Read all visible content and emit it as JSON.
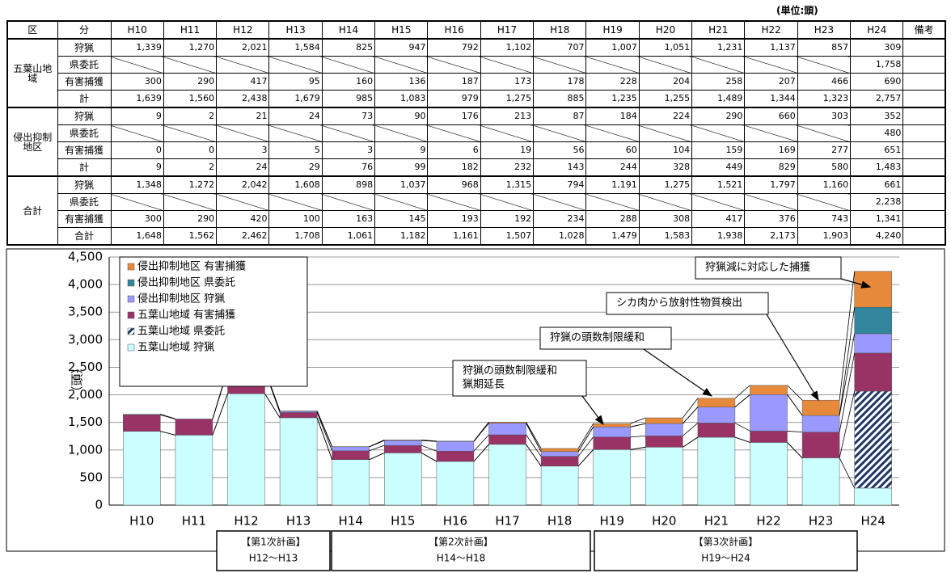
{
  "table": {
    "unit": "(単位:頭)",
    "header": [
      "区",
      "分",
      "H10",
      "H11",
      "H12",
      "H13",
      "H14",
      "H15",
      "H16",
      "H17",
      "H18",
      "H19",
      "H20",
      "H21",
      "H22",
      "H23",
      "H24",
      "備考"
    ],
    "groups": [
      {
        "name": "五葉山地域",
        "rows": [
          {
            "label": "狩猟",
            "cells": [
              "1,339",
              "1,270",
              "2,021",
              "1,584",
              "825",
              "947",
              "792",
              "1,102",
              "707",
              "1,007",
              "1,051",
              "1,231",
              "1,137",
              "857",
              "309"
            ]
          },
          {
            "label": "県委託",
            "cells": [
              null,
              null,
              null,
              null,
              null,
              null,
              null,
              null,
              null,
              null,
              null,
              null,
              null,
              null,
              "1,758"
            ]
          },
          {
            "label": "有害捕獲",
            "cells": [
              "300",
              "290",
              "417",
              "95",
              "160",
              "136",
              "187",
              "173",
              "178",
              "228",
              "204",
              "258",
              "207",
              "466",
              "690"
            ]
          },
          {
            "label": "計",
            "cells": [
              "1,639",
              "1,560",
              "2,438",
              "1,679",
              "985",
              "1,083",
              "979",
              "1,275",
              "885",
              "1,235",
              "1,255",
              "1,489",
              "1,344",
              "1,323",
              "2,757"
            ]
          }
        ]
      },
      {
        "name": "侵出抑制地区",
        "rows": [
          {
            "label": "狩猟",
            "cells": [
              "9",
              "2",
              "21",
              "24",
              "73",
              "90",
              "176",
              "213",
              "87",
              "184",
              "224",
              "290",
              "660",
              "303",
              "352"
            ]
          },
          {
            "label": "県委託",
            "cells": [
              null,
              null,
              null,
              null,
              null,
              null,
              null,
              null,
              null,
              null,
              null,
              null,
              null,
              null,
              "480"
            ]
          },
          {
            "label": "有害捕獲",
            "cells": [
              "0",
              "0",
              "3",
              "5",
              "3",
              "9",
              "6",
              "19",
              "56",
              "60",
              "104",
              "159",
              "169",
              "277",
              "651"
            ]
          },
          {
            "label": "計",
            "cells": [
              "9",
              "2",
              "24",
              "29",
              "76",
              "99",
              "182",
              "232",
              "143",
              "244",
              "328",
              "449",
              "829",
              "580",
              "1,483"
            ]
          }
        ]
      },
      {
        "name": "合計",
        "rows": [
          {
            "label": "狩猟",
            "cells": [
              "1,348",
              "1,272",
              "2,042",
              "1,608",
              "898",
              "1,037",
              "968",
              "1,315",
              "794",
              "1,191",
              "1,275",
              "1,521",
              "1,797",
              "1,160",
              "661"
            ]
          },
          {
            "label": "県委託",
            "cells": [
              null,
              null,
              null,
              null,
              null,
              null,
              null,
              null,
              null,
              null,
              null,
              null,
              null,
              null,
              "2,238"
            ]
          },
          {
            "label": "有害捕獲",
            "cells": [
              "300",
              "290",
              "420",
              "100",
              "163",
              "145",
              "193",
              "192",
              "234",
              "288",
              "308",
              "417",
              "376",
              "743",
              "1,341"
            ]
          },
          {
            "label": "合計",
            "cells": [
              "1,648",
              "1,562",
              "2,462",
              "1,708",
              "1,061",
              "1,182",
              "1,161",
              "1,507",
              "1,028",
              "1,479",
              "1,583",
              "1,938",
              "2,173",
              "1,903",
              "4,240"
            ]
          }
        ]
      }
    ]
  },
  "chart_data": {
    "type": "bar",
    "stacked": true,
    "categories": [
      "H10",
      "H11",
      "H12",
      "H13",
      "H14",
      "H15",
      "H16",
      "H17",
      "H18",
      "H19",
      "H20",
      "H21",
      "H22",
      "H23",
      "H24"
    ],
    "series": [
      {
        "name": "五葉山地域 狩猟",
        "color": "#ccffff",
        "values": [
          1339,
          1270,
          2021,
          1584,
          825,
          947,
          792,
          1102,
          707,
          1007,
          1051,
          1231,
          1137,
          857,
          309
        ]
      },
      {
        "name": "五葉山地域 県委託",
        "color": "#1f3864",
        "hatch": true,
        "values": [
          null,
          null,
          null,
          null,
          null,
          null,
          null,
          null,
          null,
          null,
          null,
          null,
          null,
          null,
          1758
        ]
      },
      {
        "name": "五葉山地域 有害捕獲",
        "color": "#993366",
        "values": [
          300,
          290,
          417,
          95,
          160,
          136,
          187,
          173,
          178,
          228,
          204,
          258,
          207,
          466,
          690
        ]
      },
      {
        "name": "侵出抑制地区 狩猟",
        "color": "#9999ff",
        "values": [
          9,
          2,
          21,
          24,
          73,
          90,
          176,
          213,
          87,
          184,
          224,
          290,
          660,
          303,
          352
        ]
      },
      {
        "name": "侵出抑制地区 県委託",
        "color": "#31859c",
        "values": [
          null,
          null,
          null,
          null,
          null,
          null,
          null,
          null,
          null,
          null,
          null,
          null,
          null,
          null,
          480
        ]
      },
      {
        "name": "侵出抑制地区 有害捕獲",
        "color": "#e6893a",
        "values": [
          0,
          0,
          3,
          5,
          3,
          9,
          6,
          19,
          56,
          60,
          104,
          159,
          169,
          277,
          651
        ]
      }
    ],
    "ylim": [
      0,
      4500
    ],
    "yticks": [
      0,
      500,
      {
        "value": 1000,
        "label": "1,000"
      },
      {
        "value": 1500,
        "label": "1,500"
      },
      {
        "value": 2000,
        "label": "2,000"
      },
      {
        "value": 2500,
        "label": "2,500"
      },
      {
        "value": 3000,
        "label": "3,000"
      },
      {
        "value": 3500,
        "label": "3,500"
      },
      {
        "value": 4000,
        "label": "4,000"
      },
      {
        "value": 4500,
        "label": "4,500"
      }
    ],
    "ylabel": "（頭）",
    "grid": true,
    "legend": "top-left",
    "annotations": [
      {
        "lines": [
          "狩猟減に対応した捕獲"
        ]
      },
      {
        "lines": [
          "シカ肉から放射性物質検出"
        ]
      },
      {
        "lines": [
          "狩猟の頭数制限緩和"
        ]
      },
      {
        "lines": [
          "狩猟の頭数制限緩和",
          "猟期延長"
        ]
      }
    ],
    "plans": [
      {
        "title": "【第1次計画】",
        "range": "H12～H13"
      },
      {
        "title": "【第2次計画】",
        "range": "H14～H18"
      },
      {
        "title": "【第3次計画】",
        "range": "H19～H24"
      }
    ]
  }
}
